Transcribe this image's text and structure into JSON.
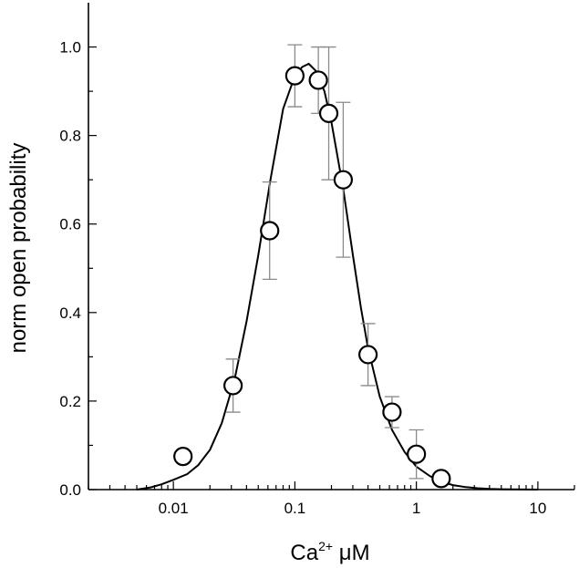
{
  "chart_data": {
    "type": "scatter",
    "xlabel_base": "Ca",
    "xlabel_sup": "2+",
    "xlabel_unit": " μM",
    "ylabel": "norm open probability",
    "x_scale": "log",
    "xlim": [
      0.002,
      20
    ],
    "ylim": [
      0,
      1.1
    ],
    "x_ticks": [
      {
        "value": 0.01,
        "label": "0.01"
      },
      {
        "value": 0.1,
        "label": "0.1"
      },
      {
        "value": 1,
        "label": "1"
      },
      {
        "value": 10,
        "label": "10"
      }
    ],
    "y_ticks": [
      {
        "value": 0.0,
        "label": "0.0"
      },
      {
        "value": 0.2,
        "label": "0.2"
      },
      {
        "value": 0.4,
        "label": "0.4"
      },
      {
        "value": 0.6,
        "label": "0.6"
      },
      {
        "value": 0.8,
        "label": "0.8"
      },
      {
        "value": 1.0,
        "label": "1.0"
      }
    ],
    "grid": false,
    "series": [
      {
        "kind": "points",
        "x": [
          0.012,
          0.031,
          0.062,
          0.1,
          0.156,
          0.19,
          0.25,
          0.4,
          0.63,
          1.0,
          1.6
        ],
        "y": [
          0.075,
          0.235,
          0.585,
          0.935,
          0.925,
          0.85,
          0.7,
          0.305,
          0.175,
          0.08,
          0.025
        ],
        "err": [
          null,
          0.06,
          0.11,
          0.07,
          0.075,
          0.15,
          0.175,
          0.07,
          0.035,
          0.055,
          null
        ]
      },
      {
        "kind": "fit_curve",
        "x": [
          0.005,
          0.0065,
          0.008,
          0.01,
          0.013,
          0.016,
          0.02,
          0.025,
          0.032,
          0.04,
          0.05,
          0.063,
          0.08,
          0.1,
          0.115,
          0.13,
          0.15,
          0.175,
          0.2,
          0.25,
          0.3,
          0.35,
          0.4,
          0.5,
          0.63,
          0.8,
          1.0,
          1.3,
          1.6,
          2.0,
          2.5,
          3.2,
          4.0,
          5.0,
          6.3,
          8.0,
          10.0
        ],
        "y": [
          0.0,
          0.005,
          0.012,
          0.022,
          0.035,
          0.055,
          0.09,
          0.15,
          0.25,
          0.38,
          0.53,
          0.7,
          0.86,
          0.935,
          0.955,
          0.962,
          0.945,
          0.9,
          0.83,
          0.68,
          0.53,
          0.41,
          0.32,
          0.21,
          0.135,
          0.085,
          0.052,
          0.03,
          0.018,
          0.01,
          0.006,
          0.003,
          0.0015,
          0.0008,
          0.0004,
          0.0002,
          0.0001
        ]
      }
    ]
  }
}
